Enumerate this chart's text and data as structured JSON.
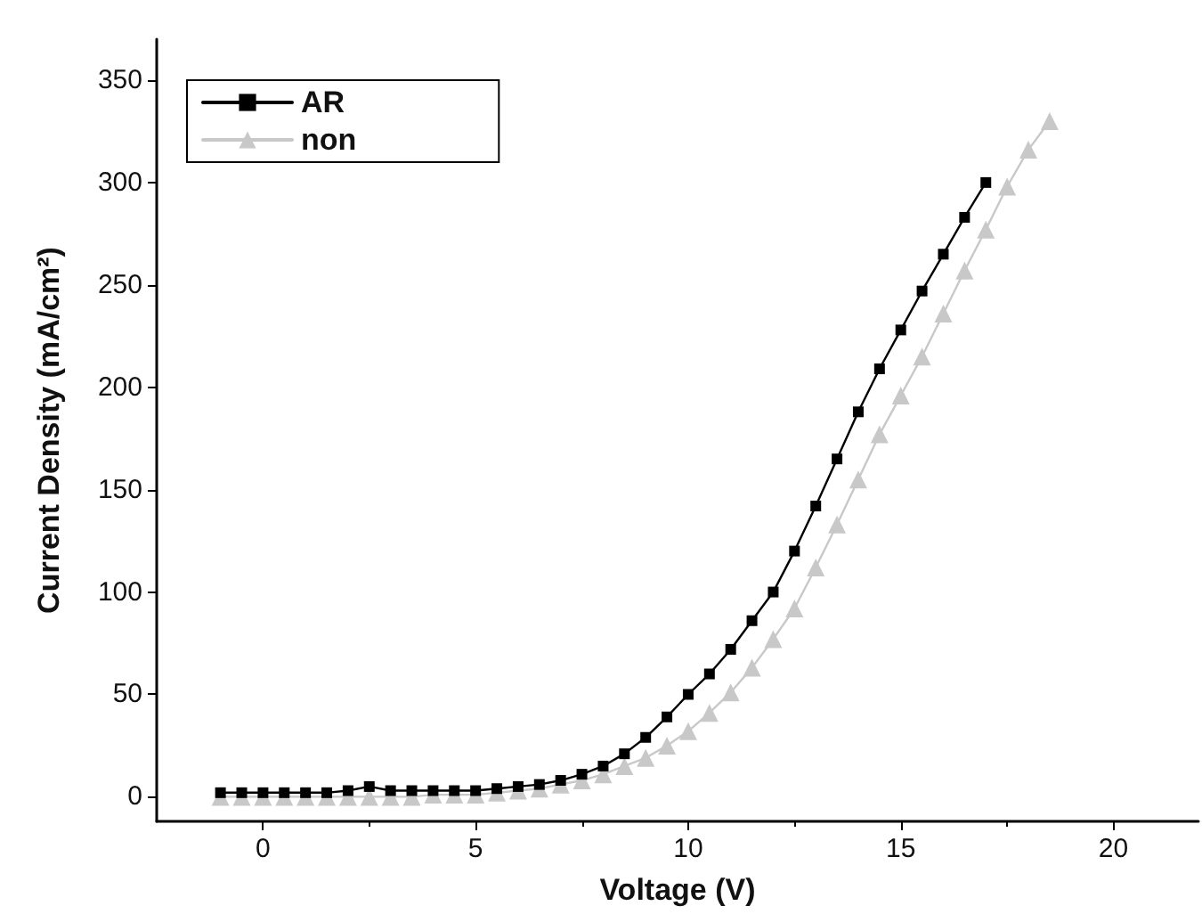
{
  "chart_data": {
    "type": "line",
    "xlabel": "Voltage (V)",
    "ylabel": "Current Density (mA/cm²)",
    "xlim": [
      -2.5,
      22
    ],
    "xticks": [
      0,
      5,
      10,
      15,
      20
    ],
    "ylim": [
      -12,
      370
    ],
    "yticks": [
      0,
      50,
      100,
      150,
      200,
      250,
      300,
      350
    ],
    "grid": false,
    "legend": "top left",
    "line_style": "solid",
    "series": [
      {
        "name": "AR",
        "color": "#000000",
        "marker": "square",
        "x": [
          -1,
          -0.5,
          0,
          0.5,
          1,
          1.5,
          2,
          2.5,
          3,
          3.5,
          4,
          4.5,
          5,
          5.5,
          6,
          6.5,
          7,
          7.5,
          8,
          8.5,
          9,
          9.5,
          10,
          10.5,
          11,
          11.5,
          12,
          12.5,
          13,
          13.5,
          14,
          14.5,
          15,
          15.5,
          16,
          16.5,
          17
        ],
        "values": [
          2,
          2,
          2,
          2,
          2,
          2,
          3,
          5,
          3,
          3,
          3,
          3,
          3,
          4,
          5,
          6,
          8,
          11,
          15,
          21,
          29,
          39,
          50,
          60,
          72,
          86,
          100,
          120,
          142,
          165,
          188,
          209,
          228,
          247,
          265,
          283,
          300
        ]
      },
      {
        "name": "non",
        "color": "#c8c8c8",
        "marker": "triangle",
        "x": [
          -1,
          -0.5,
          0,
          0.5,
          1,
          1.5,
          2,
          2.5,
          3,
          3.5,
          4,
          4.5,
          5,
          5.5,
          6,
          6.5,
          7,
          7.5,
          8,
          8.5,
          9,
          9.5,
          10,
          10.5,
          11,
          11.5,
          12,
          12.5,
          13,
          13.5,
          14,
          14.5,
          15,
          15.5,
          16,
          16.5,
          17,
          17.5,
          18,
          18.5
        ],
        "values": [
          0,
          0,
          0,
          0,
          0,
          0,
          0,
          0,
          0,
          0,
          1,
          1,
          1,
          2,
          3,
          4,
          6,
          8,
          11,
          15,
          19,
          25,
          32,
          41,
          51,
          63,
          77,
          92,
          112,
          133,
          155,
          177,
          196,
          215,
          236,
          257,
          277,
          298,
          316,
          330
        ]
      }
    ]
  }
}
